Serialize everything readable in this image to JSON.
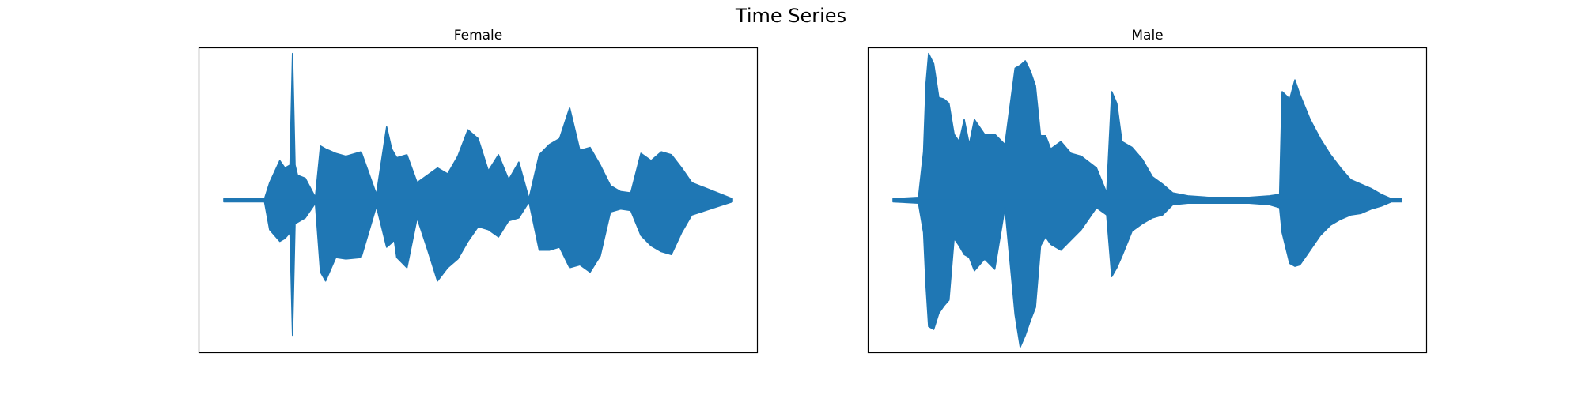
{
  "title": "Time Series",
  "accent_color": "#1f77b4",
  "chart_data": [
    {
      "type": "line",
      "title": "Female",
      "xlabel": "",
      "ylabel": "",
      "grid": false,
      "ticks_visible": false,
      "ylim": [
        -1.0,
        1.0
      ],
      "envelope_x": [
        0.0,
        0.08,
        0.09,
        0.11,
        0.12,
        0.13,
        0.135,
        0.14,
        0.145,
        0.16,
        0.18,
        0.19,
        0.2,
        0.22,
        0.24,
        0.27,
        0.3,
        0.32,
        0.33,
        0.335,
        0.34,
        0.36,
        0.38,
        0.4,
        0.42,
        0.44,
        0.46,
        0.48,
        0.5,
        0.52,
        0.54,
        0.56,
        0.58,
        0.6,
        0.62,
        0.64,
        0.66,
        0.68,
        0.7,
        0.72,
        0.74,
        0.76,
        0.78,
        0.8,
        0.82,
        0.84,
        0.86,
        0.88,
        0.9,
        0.92,
        1.0
      ],
      "envelope_max": [
        0.01,
        0.01,
        0.12,
        0.27,
        0.22,
        0.24,
        1.0,
        0.24,
        0.17,
        0.15,
        0.02,
        0.37,
        0.35,
        0.32,
        0.3,
        0.33,
        0.04,
        0.5,
        0.35,
        0.32,
        0.29,
        0.31,
        0.12,
        0.17,
        0.22,
        0.18,
        0.3,
        0.48,
        0.42,
        0.2,
        0.31,
        0.14,
        0.26,
        0.01,
        0.31,
        0.38,
        0.42,
        0.63,
        0.34,
        0.36,
        0.24,
        0.1,
        0.06,
        0.05,
        0.32,
        0.27,
        0.33,
        0.31,
        0.22,
        0.12,
        0.01
      ],
      "envelope_min": [
        -0.01,
        -0.01,
        -0.2,
        -0.28,
        -0.26,
        -0.22,
        -0.92,
        -0.16,
        -0.15,
        -0.12,
        -0.02,
        -0.49,
        -0.55,
        -0.39,
        -0.4,
        -0.39,
        -0.04,
        -0.32,
        -0.29,
        -0.27,
        -0.39,
        -0.46,
        -0.12,
        -0.33,
        -0.55,
        -0.46,
        -0.4,
        -0.28,
        -0.18,
        -0.2,
        -0.25,
        -0.14,
        -0.12,
        -0.01,
        -0.34,
        -0.34,
        -0.32,
        -0.46,
        -0.44,
        -0.49,
        -0.38,
        -0.08,
        -0.06,
        -0.07,
        -0.24,
        -0.31,
        -0.35,
        -0.37,
        -0.22,
        -0.1,
        -0.01
      ]
    },
    {
      "type": "line",
      "title": "Male",
      "xlabel": "",
      "ylabel": "",
      "grid": false,
      "ticks_visible": false,
      "ylim": [
        -1.0,
        1.0
      ],
      "envelope_x": [
        0.0,
        0.05,
        0.06,
        0.065,
        0.07,
        0.08,
        0.09,
        0.1,
        0.11,
        0.12,
        0.13,
        0.14,
        0.15,
        0.16,
        0.18,
        0.2,
        0.22,
        0.24,
        0.25,
        0.26,
        0.27,
        0.28,
        0.29,
        0.3,
        0.31,
        0.33,
        0.35,
        0.37,
        0.4,
        0.42,
        0.43,
        0.44,
        0.45,
        0.47,
        0.49,
        0.51,
        0.53,
        0.55,
        0.58,
        0.62,
        0.66,
        0.7,
        0.74,
        0.76,
        0.765,
        0.78,
        0.79,
        0.8,
        0.82,
        0.84,
        0.86,
        0.88,
        0.9,
        0.92,
        0.94,
        0.96,
        0.98,
        1.0
      ],
      "envelope_max": [
        0.01,
        0.02,
        0.33,
        0.8,
        1.0,
        0.93,
        0.7,
        0.69,
        0.66,
        0.45,
        0.4,
        0.55,
        0.38,
        0.55,
        0.45,
        0.45,
        0.38,
        0.9,
        0.92,
        0.95,
        0.88,
        0.78,
        0.44,
        0.44,
        0.35,
        0.4,
        0.32,
        0.3,
        0.22,
        0.05,
        0.74,
        0.66,
        0.4,
        0.36,
        0.28,
        0.16,
        0.11,
        0.05,
        0.03,
        0.02,
        0.02,
        0.02,
        0.03,
        0.04,
        0.74,
        0.69,
        0.82,
        0.72,
        0.55,
        0.42,
        0.31,
        0.22,
        0.14,
        0.11,
        0.08,
        0.04,
        0.01,
        0.01
      ],
      "envelope_min": [
        -0.01,
        -0.02,
        -0.22,
        -0.59,
        -0.86,
        -0.88,
        -0.77,
        -0.72,
        -0.68,
        -0.26,
        -0.31,
        -0.37,
        -0.39,
        -0.48,
        -0.4,
        -0.47,
        -0.05,
        -0.78,
        -1.0,
        -0.92,
        -0.82,
        -0.73,
        -0.31,
        -0.25,
        -0.3,
        -0.34,
        -0.27,
        -0.2,
        -0.05,
        -0.1,
        -0.52,
        -0.46,
        -0.38,
        -0.21,
        -0.16,
        -0.12,
        -0.1,
        -0.03,
        -0.02,
        -0.02,
        -0.02,
        -0.02,
        -0.03,
        -0.05,
        -0.22,
        -0.43,
        -0.45,
        -0.44,
        -0.34,
        -0.24,
        -0.17,
        -0.13,
        -0.1,
        -0.09,
        -0.06,
        -0.04,
        -0.01,
        -0.01
      ]
    }
  ]
}
